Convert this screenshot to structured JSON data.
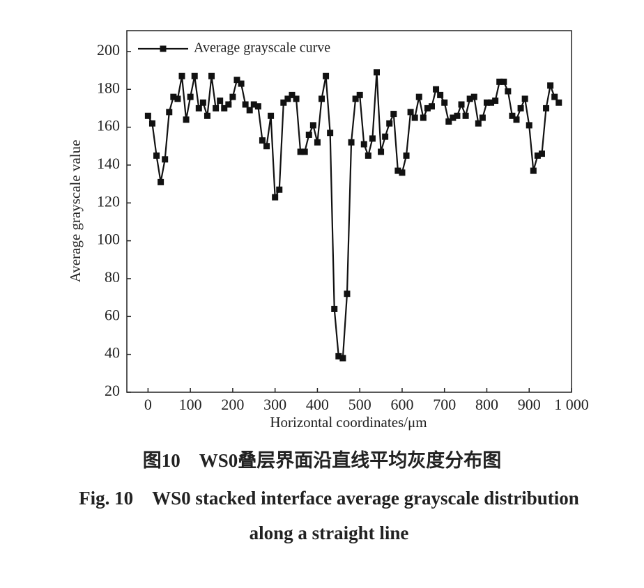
{
  "chart_data": {
    "type": "line",
    "xlabel": "Horizontal coordinates/μm",
    "ylabel": "Average grayscale value",
    "caption_cn": "图10　WS0叠层界面沿直线平均灰度分布图",
    "caption_en": [
      "Fig. 10　WS0 stacked interface average grayscale distribution",
      "along a straight line"
    ],
    "legend": "upper left",
    "x": [
      0,
      10,
      20,
      30,
      40,
      50,
      60,
      70,
      80,
      90,
      100,
      110,
      120,
      130,
      140,
      150,
      160,
      170,
      180,
      190,
      200,
      210,
      220,
      230,
      240,
      250,
      260,
      270,
      280,
      290,
      300,
      310,
      320,
      330,
      340,
      350,
      360,
      370,
      380,
      390,
      400,
      410,
      420,
      430,
      440,
      450,
      460,
      470,
      480,
      490,
      500,
      510,
      520,
      530,
      540,
      550,
      560,
      570,
      580,
      590,
      600,
      610,
      620,
      630,
      640,
      650,
      660,
      670,
      680,
      690,
      700,
      710,
      720,
      730,
      740,
      750,
      760,
      770,
      780,
      790,
      800,
      810,
      820,
      830,
      840,
      850,
      860,
      870,
      880,
      890,
      900,
      910,
      920,
      930,
      940,
      950,
      960,
      970
    ],
    "series": [
      {
        "name": "Average grayscale curve",
        "color": "#111111",
        "values": [
          166,
          162,
          145,
          131,
          143,
          168,
          176,
          175,
          187,
          164,
          176,
          187,
          170,
          173,
          166,
          187,
          170,
          174,
          170,
          172,
          176,
          185,
          183,
          172,
          169,
          172,
          171,
          153,
          150,
          166,
          123,
          127,
          173,
          175,
          177,
          175,
          147,
          147,
          156,
          161,
          152,
          175,
          187,
          157,
          64,
          39,
          38,
          72,
          152,
          175,
          177,
          151,
          145,
          154,
          189,
          147,
          155,
          162,
          167,
          137,
          136,
          145,
          168,
          165,
          176,
          165,
          170,
          171,
          180,
          177,
          173,
          163,
          165,
          166,
          172,
          166,
          175,
          176,
          162,
          165,
          173,
          173,
          174,
          184,
          184,
          179,
          166,
          164,
          170,
          175,
          161,
          137,
          145,
          146,
          170,
          182,
          176,
          173
        ]
      }
    ],
    "xlim": [
      -50,
      1000
    ],
    "xticks": [
      0,
      100,
      200,
      300,
      400,
      500,
      600,
      700,
      800,
      900,
      {
        "value": 1000,
        "label": "1 000"
      }
    ],
    "ylim": [
      20,
      211
    ],
    "yticks": [
      20,
      40,
      60,
      80,
      100,
      120,
      140,
      160,
      180,
      200
    ]
  }
}
